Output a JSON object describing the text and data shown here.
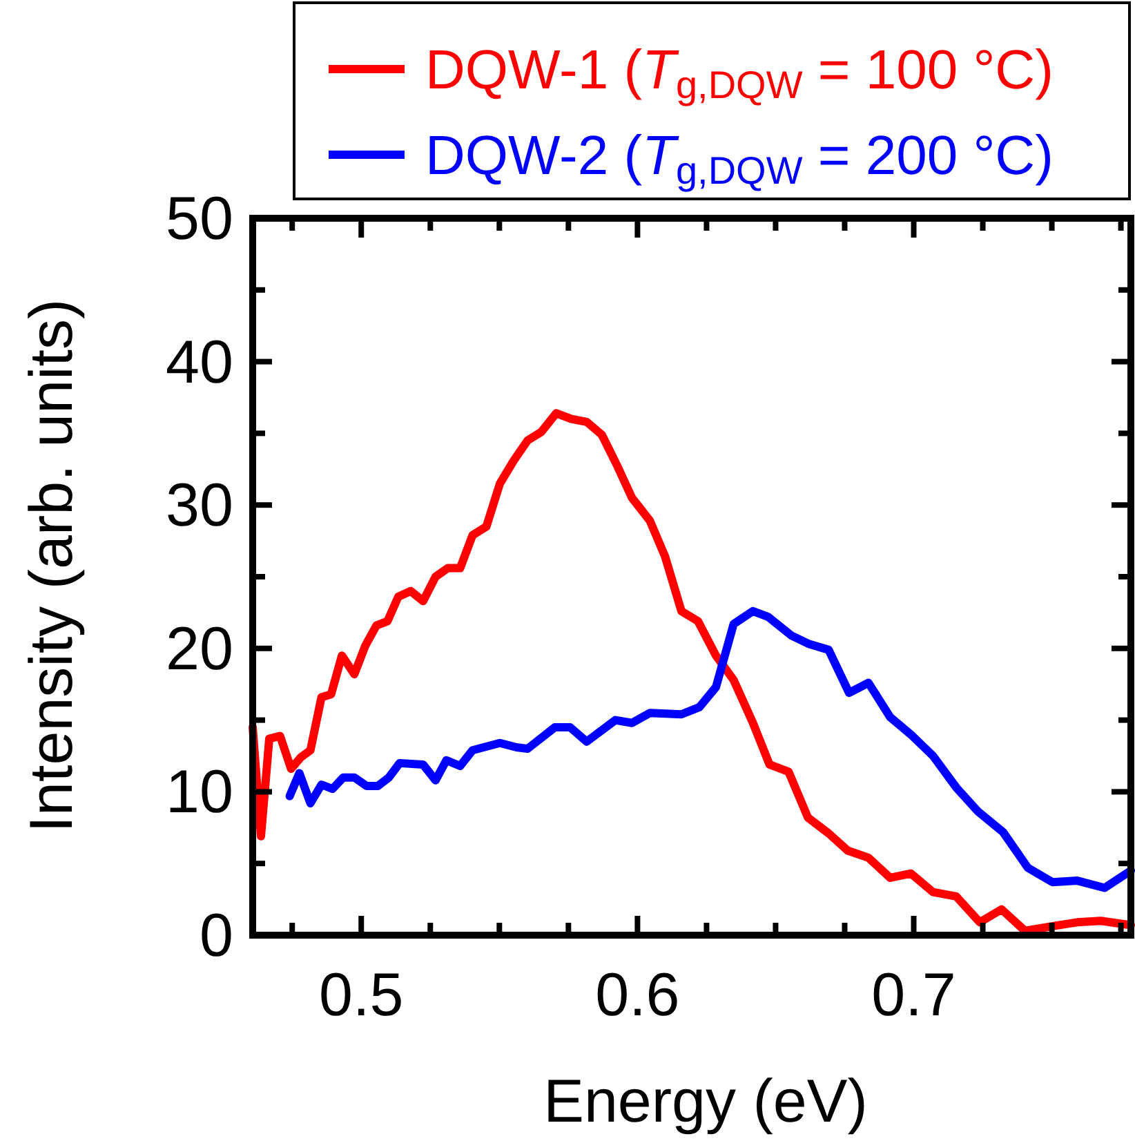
{
  "chart_data": {
    "type": "line",
    "xlabel": "Energy (eV)",
    "ylabel": "Intensity (arb. units)",
    "xlim": [
      0.4607,
      0.7786
    ],
    "ylim": [
      0,
      50
    ],
    "xticks": [
      {
        "value": 0.475,
        "label": null
      },
      0.5,
      {
        "value": 0.525,
        "label": null
      },
      {
        "value": 0.55,
        "label": null
      },
      {
        "value": 0.575,
        "label": null
      },
      0.6,
      {
        "value": 0.625,
        "label": null
      },
      {
        "value": 0.65,
        "label": null
      },
      {
        "value": 0.675,
        "label": null
      },
      0.7,
      {
        "value": 0.725,
        "label": null
      },
      {
        "value": 0.75,
        "label": null
      },
      {
        "value": 0.775,
        "label": null
      }
    ],
    "yticks": [
      0,
      {
        "value": 5,
        "label": null
      },
      10,
      {
        "value": 15,
        "label": null
      },
      20,
      {
        "value": 25,
        "label": null
      },
      30,
      {
        "value": 35,
        "label": null
      },
      40,
      {
        "value": 45,
        "label": null
      },
      50
    ],
    "legend": "top",
    "line_style": "solid",
    "marker": "none",
    "series": [
      {
        "name": "DQW-1 (T$_{g,DQW}$ = 100 °C)",
        "color": "#ff0000",
        "x": [
          0.4607,
          0.4637,
          0.4667,
          0.4706,
          0.4746,
          0.4781,
          0.4816,
          0.4856,
          0.4891,
          0.493,
          0.4975,
          0.5015,
          0.5055,
          0.5095,
          0.5134,
          0.5179,
          0.5224,
          0.5269,
          0.5313,
          0.5358,
          0.5403,
          0.5453,
          0.5502,
          0.5552,
          0.5602,
          0.5652,
          0.5706,
          0.5761,
          0.5816,
          0.5871,
          0.5925,
          0.598,
          0.6045,
          0.61,
          0.6159,
          0.6219,
          0.6284,
          0.6348,
          0.6418,
          0.6478,
          0.6547,
          0.6617,
          0.6692,
          0.6761,
          0.6836,
          0.6915,
          0.699,
          0.707,
          0.7154,
          0.7239,
          0.7318,
          0.7403,
          0.7493,
          0.7592,
          0.7677,
          0.7786
        ],
        "values": [
          14.5,
          6.9,
          13.7,
          13.9,
          11.6,
          12.4,
          12.9,
          16.6,
          16.8,
          19.5,
          18.2,
          20.2,
          21.6,
          21.9,
          23.6,
          24.0,
          23.3,
          25.0,
          25.6,
          25.6,
          27.9,
          28.5,
          31.5,
          33.1,
          34.5,
          35.1,
          36.4,
          36.0,
          35.8,
          34.9,
          32.8,
          30.5,
          28.9,
          26.4,
          22.6,
          21.9,
          19.5,
          17.8,
          14.8,
          11.9,
          11.4,
          8.2,
          7.1,
          5.9,
          5.4,
          4.0,
          4.3,
          3.0,
          2.7,
          0.9,
          1.8,
          0.3,
          0.6,
          0.9,
          1.0,
          0.7
        ]
      },
      {
        "name": "DQW-2 (T$_{g,DQW}$ = 200 °C)",
        "color": "#0000ff",
        "x": [
          0.4741,
          0.4776,
          0.4816,
          0.4856,
          0.4896,
          0.4935,
          0.4975,
          0.502,
          0.506,
          0.51,
          0.5139,
          0.5224,
          0.5269,
          0.5308,
          0.5358,
          0.5403,
          0.5502,
          0.5562,
          0.5602,
          0.5701,
          0.5756,
          0.5816,
          0.592,
          0.598,
          0.6045,
          0.6159,
          0.6224,
          0.6284,
          0.6348,
          0.6418,
          0.6473,
          0.6557,
          0.6622,
          0.6692,
          0.6766,
          0.6836,
          0.6915,
          0.6995,
          0.707,
          0.7154,
          0.7234,
          0.7323,
          0.7413,
          0.7502,
          0.7592,
          0.7691,
          0.7786
        ],
        "values": [
          9.7,
          11.3,
          9.2,
          10.5,
          10.2,
          11.0,
          11.0,
          10.4,
          10.4,
          11.0,
          12.0,
          11.9,
          10.8,
          12.2,
          11.8,
          12.9,
          13.4,
          13.1,
          13.0,
          14.5,
          14.5,
          13.5,
          15.0,
          14.8,
          15.5,
          15.4,
          15.9,
          17.3,
          21.7,
          22.6,
          22.2,
          20.9,
          20.3,
          19.9,
          16.9,
          17.6,
          15.2,
          13.9,
          12.5,
          10.3,
          8.6,
          7.2,
          4.7,
          3.7,
          3.8,
          3.3,
          4.5
        ]
      }
    ]
  }
}
